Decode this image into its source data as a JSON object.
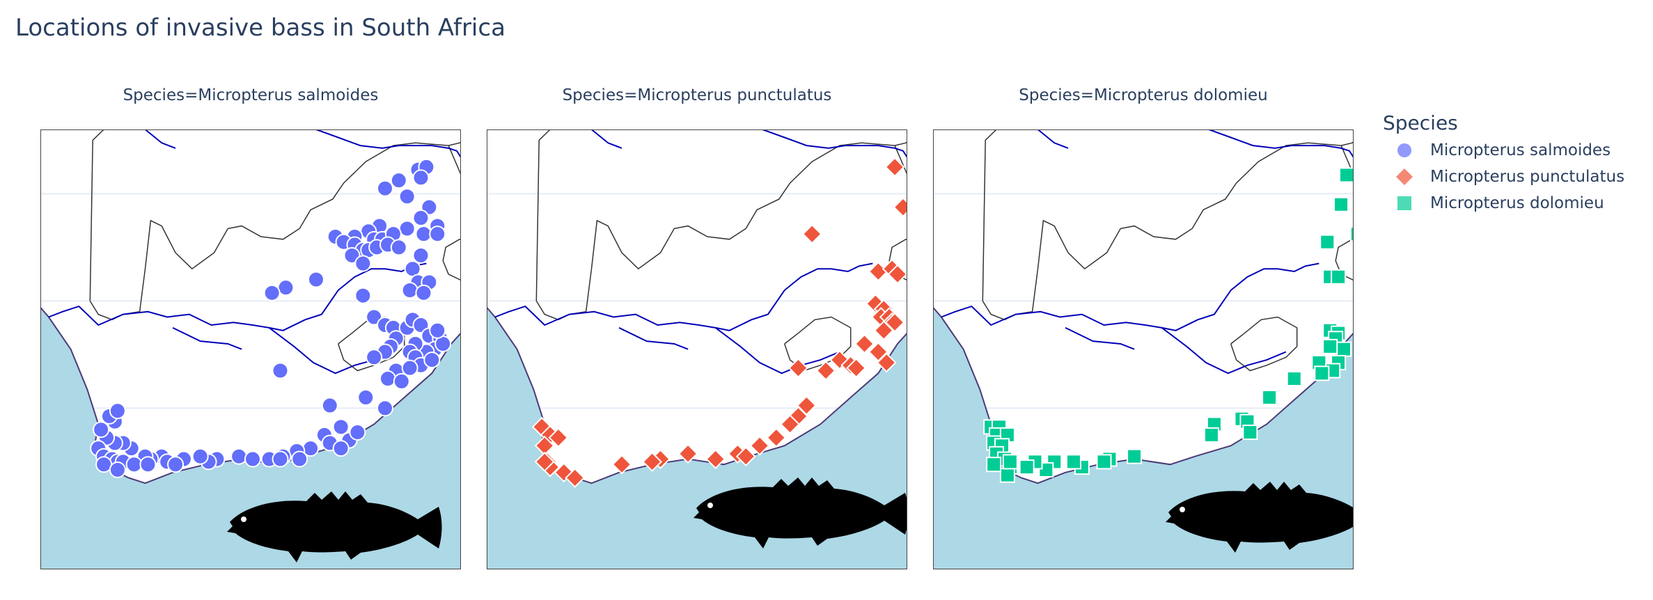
{
  "title": "Locations of invasive bass in South Africa",
  "colors": {
    "ocean": "#add8e6",
    "land": "#ffffff",
    "rivers": "#0000b8",
    "borders": "#333333",
    "coast": "#4b3a78",
    "grid": "#e5ecf6"
  },
  "legend": {
    "title": "Species",
    "items": [
      {
        "label": "Micropterus salmoides",
        "color": "#636efa",
        "symbol": "circle"
      },
      {
        "label": "Micropterus punctulatus",
        "color": "#ef553b",
        "symbol": "diamond"
      },
      {
        "label": "Micropterus dolomieu",
        "color": "#00cc96",
        "symbol": "square"
      }
    ]
  },
  "facets": [
    {
      "title": "Species=Micropterus salmoides",
      "color": "#636efa",
      "symbol": "circle",
      "points": [
        [
          29.9,
          -23.1
        ],
        [
          30.2,
          -23.0
        ],
        [
          29.2,
          -23.5
        ],
        [
          30.0,
          -23.4
        ],
        [
          28.7,
          -23.8
        ],
        [
          29.5,
          -24.1
        ],
        [
          30.3,
          -24.5
        ],
        [
          30.0,
          -24.9
        ],
        [
          30.6,
          -25.2
        ],
        [
          29.5,
          -25.3
        ],
        [
          28.5,
          -25.2
        ],
        [
          28.1,
          -25.4
        ],
        [
          28.3,
          -25.7
        ],
        [
          28.6,
          -25.7
        ],
        [
          29.0,
          -25.5
        ],
        [
          27.6,
          -25.6
        ],
        [
          26.9,
          -25.6
        ],
        [
          27.2,
          -25.8
        ],
        [
          27.6,
          -25.9
        ],
        [
          27.9,
          -26.1
        ],
        [
          28.1,
          -26.1
        ],
        [
          28.4,
          -26.0
        ],
        [
          27.5,
          -26.3
        ],
        [
          27.9,
          -26.6
        ],
        [
          28.8,
          -25.9
        ],
        [
          29.2,
          -26.0
        ],
        [
          30.1,
          -25.5
        ],
        [
          30.6,
          -25.5
        ],
        [
          30.0,
          -26.3
        ],
        [
          29.7,
          -26.8
        ],
        [
          29.9,
          -27.3
        ],
        [
          30.3,
          -27.3
        ],
        [
          29.6,
          -27.6
        ],
        [
          30.1,
          -27.7
        ],
        [
          26.2,
          -27.2
        ],
        [
          25.1,
          -27.5
        ],
        [
          24.6,
          -27.7
        ],
        [
          27.9,
          -27.8
        ],
        [
          28.3,
          -28.6
        ],
        [
          28.7,
          -28.9
        ],
        [
          29.0,
          -29.0
        ],
        [
          29.5,
          -29.0
        ],
        [
          29.7,
          -28.7
        ],
        [
          30.0,
          -28.9
        ],
        [
          30.3,
          -29.3
        ],
        [
          30.7,
          -29.4
        ],
        [
          30.5,
          -29.8
        ],
        [
          30.2,
          -29.9
        ],
        [
          29.8,
          -29.6
        ],
        [
          29.6,
          -29.9
        ],
        [
          29.8,
          -30.1
        ],
        [
          30.0,
          -30.4
        ],
        [
          30.4,
          -30.2
        ],
        [
          30.8,
          -29.6
        ],
        [
          30.6,
          -29.1
        ],
        [
          29.1,
          -29.4
        ],
        [
          28.9,
          -29.7
        ],
        [
          28.7,
          -29.9
        ],
        [
          28.3,
          -30.1
        ],
        [
          29.1,
          -30.6
        ],
        [
          28.8,
          -30.9
        ],
        [
          29.6,
          -30.5
        ],
        [
          29.3,
          -31.0
        ],
        [
          28.0,
          -31.6
        ],
        [
          26.7,
          -31.9
        ],
        [
          28.7,
          -32.0
        ],
        [
          24.9,
          -30.6
        ],
        [
          27.1,
          -32.7
        ],
        [
          26.5,
          -33.0
        ],
        [
          26.7,
          -33.3
        ],
        [
          27.4,
          -33.2
        ],
        [
          27.7,
          -32.9
        ],
        [
          27.1,
          -33.5
        ],
        [
          26.0,
          -33.5
        ],
        [
          25.5,
          -33.6
        ],
        [
          25.0,
          -33.8
        ],
        [
          25.6,
          -33.9
        ],
        [
          24.5,
          -33.9
        ],
        [
          24.9,
          -33.9
        ],
        [
          23.4,
          -33.8
        ],
        [
          23.9,
          -33.9
        ],
        [
          22.6,
          -33.9
        ],
        [
          22.3,
          -34.0
        ],
        [
          21.4,
          -33.9
        ],
        [
          22.0,
          -33.8
        ],
        [
          20.6,
          -33.8
        ],
        [
          20.2,
          -33.9
        ],
        [
          20.0,
          -33.8
        ],
        [
          19.5,
          -33.5
        ],
        [
          19.2,
          -33.3
        ],
        [
          18.9,
          -33.3
        ],
        [
          18.6,
          -33.1
        ],
        [
          18.4,
          -32.8
        ],
        [
          18.9,
          -32.5
        ],
        [
          18.7,
          -32.3
        ],
        [
          19.0,
          -32.1
        ],
        [
          18.3,
          -33.5
        ],
        [
          18.5,
          -33.8
        ],
        [
          18.8,
          -33.9
        ],
        [
          19.0,
          -34.0
        ],
        [
          18.5,
          -34.1
        ],
        [
          19.2,
          -34.0
        ],
        [
          19.0,
          -34.3
        ],
        [
          19.6,
          -34.1
        ],
        [
          20.1,
          -34.1
        ],
        [
          20.8,
          -34.0
        ],
        [
          21.1,
          -34.1
        ]
      ]
    },
    {
      "title": "Species=Micropterus punctulatus",
      "color": "#ef553b",
      "symbol": "diamond",
      "points": [
        [
          31.0,
          -23.0
        ],
        [
          31.3,
          -24.5
        ],
        [
          28.0,
          -25.5
        ],
        [
          30.4,
          -26.9
        ],
        [
          30.9,
          -26.8
        ],
        [
          31.1,
          -27.0
        ],
        [
          30.3,
          -28.1
        ],
        [
          30.6,
          -28.3
        ],
        [
          30.5,
          -28.6
        ],
        [
          30.8,
          -28.6
        ],
        [
          30.9,
          -28.8
        ],
        [
          30.6,
          -29.1
        ],
        [
          31.0,
          -28.8
        ],
        [
          30.4,
          -29.9
        ],
        [
          29.9,
          -29.6
        ],
        [
          30.7,
          -30.3
        ],
        [
          29.0,
          -30.2
        ],
        [
          29.4,
          -30.4
        ],
        [
          29.6,
          -30.5
        ],
        [
          27.5,
          -30.5
        ],
        [
          28.5,
          -30.6
        ],
        [
          27.8,
          -31.9
        ],
        [
          27.5,
          -32.3
        ],
        [
          27.2,
          -32.6
        ],
        [
          26.7,
          -33.1
        ],
        [
          26.1,
          -33.4
        ],
        [
          25.3,
          -33.7
        ],
        [
          25.6,
          -33.8
        ],
        [
          24.5,
          -33.9
        ],
        [
          23.5,
          -33.7
        ],
        [
          22.5,
          -33.9
        ],
        [
          22.2,
          -34.0
        ],
        [
          21.1,
          -34.1
        ],
        [
          18.2,
          -32.7
        ],
        [
          18.5,
          -33.0
        ],
        [
          18.8,
          -33.1
        ],
        [
          18.3,
          -33.4
        ],
        [
          18.4,
          -34.0
        ],
        [
          18.5,
          -34.2
        ],
        [
          18.3,
          -34.0
        ],
        [
          19.0,
          -34.4
        ],
        [
          19.4,
          -34.6
        ]
      ]
    },
    {
      "title": "Species=Micropterus dolomieu",
      "color": "#00cc96",
      "symbol": "square",
      "points": [
        [
          31.2,
          -23.3
        ],
        [
          31.0,
          -24.4
        ],
        [
          31.6,
          -25.5
        ],
        [
          30.5,
          -25.8
        ],
        [
          30.6,
          -27.1
        ],
        [
          30.9,
          -27.1
        ],
        [
          30.6,
          -29.1
        ],
        [
          30.9,
          -29.2
        ],
        [
          30.8,
          -29.4
        ],
        [
          31.1,
          -29.8
        ],
        [
          30.6,
          -29.7
        ],
        [
          30.2,
          -30.3
        ],
        [
          30.9,
          -30.3
        ],
        [
          30.7,
          -30.6
        ],
        [
          30.3,
          -30.7
        ],
        [
          29.3,
          -30.9
        ],
        [
          28.4,
          -31.6
        ],
        [
          27.4,
          -32.4
        ],
        [
          27.6,
          -32.5
        ],
        [
          27.7,
          -32.9
        ],
        [
          26.4,
          -32.6
        ],
        [
          26.3,
          -33.0
        ],
        [
          23.5,
          -33.8
        ],
        [
          22.6,
          -33.9
        ],
        [
          22.4,
          -34.0
        ],
        [
          21.6,
          -34.2
        ],
        [
          21.3,
          -34.0
        ],
        [
          20.6,
          -34.0
        ],
        [
          20.3,
          -34.3
        ],
        [
          19.9,
          -34.0
        ],
        [
          19.6,
          -34.2
        ],
        [
          19.0,
          -34.2
        ],
        [
          18.9,
          -34.5
        ],
        [
          18.3,
          -32.7
        ],
        [
          18.6,
          -32.7
        ],
        [
          18.5,
          -33.0
        ],
        [
          18.9,
          -33.0
        ],
        [
          18.4,
          -33.3
        ],
        [
          18.7,
          -33.4
        ],
        [
          18.5,
          -33.7
        ],
        [
          18.8,
          -33.9
        ],
        [
          19.0,
          -34.0
        ],
        [
          18.4,
          -34.1
        ]
      ]
    }
  ]
}
